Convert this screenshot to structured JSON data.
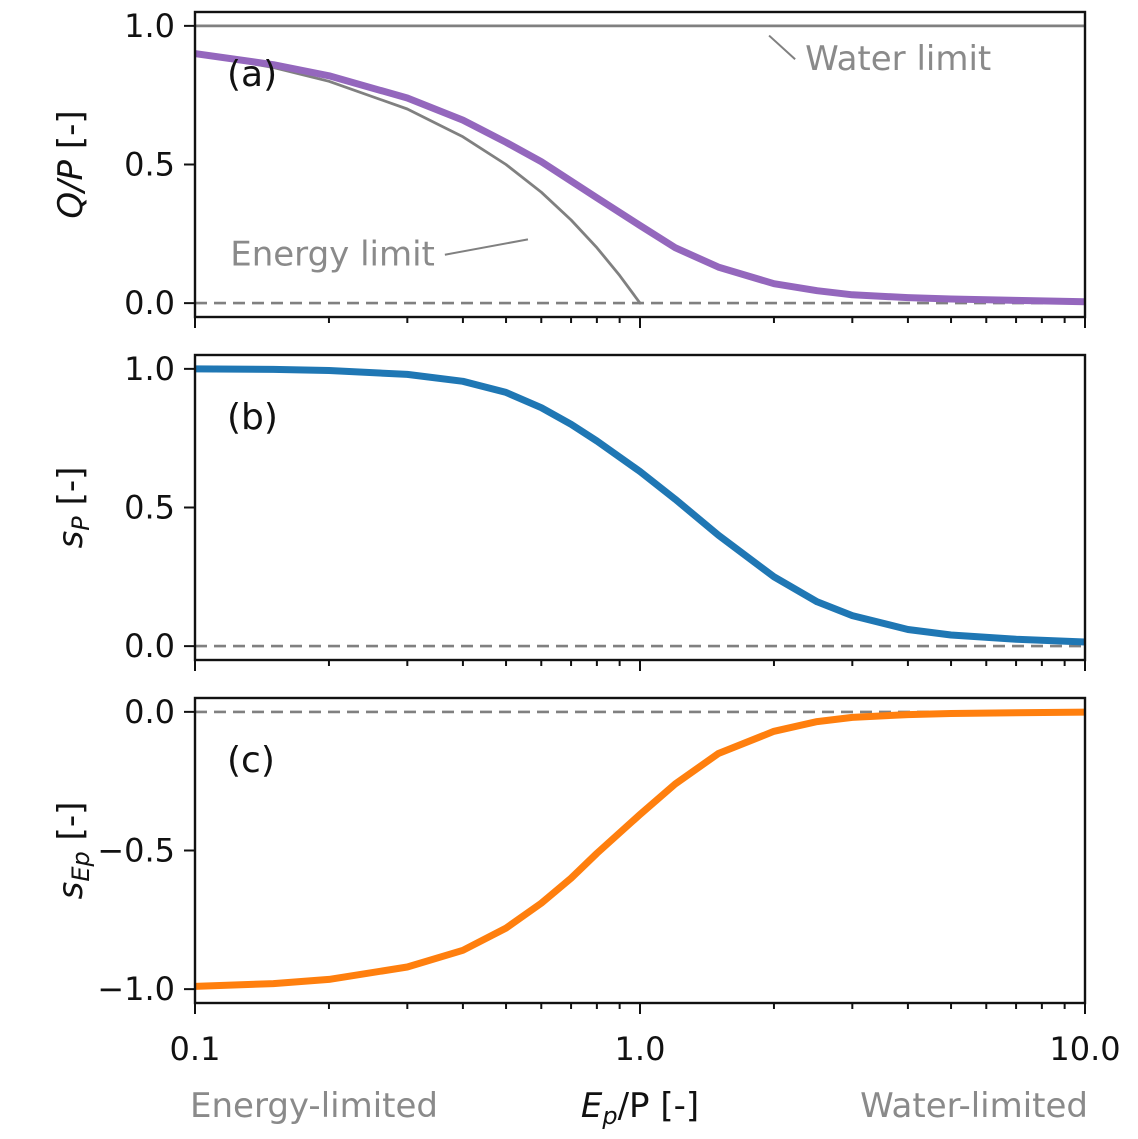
{
  "chart_data": [
    {
      "type": "line",
      "panel_label": "(a)",
      "ylabel": {
        "main": "Q/P",
        "sub": "",
        "unit": " [-]"
      },
      "xscale": "log",
      "xlim": [
        0.1,
        10.0
      ],
      "ylim": [
        -0.05,
        1.05
      ],
      "yticks": [
        0.0,
        0.5,
        1.0
      ],
      "ytick_labels": [
        "0.0",
        "0.5",
        "1.0"
      ],
      "series": [
        {
          "role": "model",
          "color": "#9467bd",
          "x": [
            0.1,
            0.15,
            0.2,
            0.3,
            0.4,
            0.5,
            0.6,
            0.7,
            0.8,
            1.0,
            1.2,
            1.5,
            2.0,
            2.5,
            3.0,
            4.0,
            5.0,
            7.0,
            10.0
          ],
          "y": [
            0.9,
            0.86,
            0.82,
            0.74,
            0.66,
            0.58,
            0.51,
            0.44,
            0.38,
            0.28,
            0.2,
            0.13,
            0.07,
            0.045,
            0.03,
            0.02,
            0.015,
            0.01,
            0.005
          ]
        },
        {
          "role": "energy-limit",
          "color": "#808080",
          "x": [
            0.1,
            0.15,
            0.2,
            0.3,
            0.4,
            0.5,
            0.6,
            0.7,
            0.8,
            0.9,
            1.0
          ],
          "y": [
            0.9,
            0.85,
            0.8,
            0.7,
            0.6,
            0.5,
            0.4,
            0.3,
            0.2,
            0.1,
            0.0
          ]
        },
        {
          "role": "water-limit",
          "color": "#808080",
          "x": [
            0.1,
            10.0
          ],
          "y": [
            1.0,
            1.0
          ]
        },
        {
          "role": "zero-line",
          "color": "#808080",
          "dashed": true,
          "x": [
            0.1,
            10.0
          ],
          "y": [
            0.0,
            0.0
          ]
        }
      ],
      "annotations": [
        {
          "text": "Water limit",
          "text_at": [
            2.35,
            0.84
          ],
          "point_to": [
            1.95,
            0.965
          ],
          "anchor": "start"
        },
        {
          "text": "Energy limit",
          "text_at": [
            0.12,
            0.135
          ],
          "point_to": [
            0.56,
            0.23
          ],
          "anchor": "start"
        }
      ]
    },
    {
      "type": "line",
      "panel_label": "(b)",
      "ylabel": {
        "main": "s",
        "sub": "P",
        "unit": " [-]"
      },
      "xscale": "log",
      "xlim": [
        0.1,
        10.0
      ],
      "ylim": [
        -0.05,
        1.05
      ],
      "yticks": [
        0.0,
        0.5,
        1.0
      ],
      "ytick_labels": [
        "0.0",
        "0.5",
        "1.0"
      ],
      "series": [
        {
          "role": "model",
          "color": "#1f77b4",
          "x": [
            0.1,
            0.15,
            0.2,
            0.3,
            0.4,
            0.5,
            0.6,
            0.7,
            0.8,
            1.0,
            1.2,
            1.5,
            2.0,
            2.5,
            3.0,
            4.0,
            5.0,
            7.0,
            10.0
          ],
          "y": [
            1.0,
            0.998,
            0.994,
            0.98,
            0.955,
            0.915,
            0.86,
            0.8,
            0.74,
            0.63,
            0.53,
            0.4,
            0.25,
            0.16,
            0.11,
            0.06,
            0.04,
            0.025,
            0.015
          ]
        },
        {
          "role": "zero-line",
          "color": "#808080",
          "dashed": true,
          "x": [
            0.1,
            10.0
          ],
          "y": [
            0.0,
            0.0
          ]
        }
      ]
    },
    {
      "type": "line",
      "panel_label": "(c)",
      "ylabel": {
        "main": "s",
        "sub": "Ep",
        "unit": " [-]"
      },
      "xscale": "log",
      "xlim": [
        0.1,
        10.0
      ],
      "xlabel": {
        "main": "E",
        "sub": "p",
        "rest": "/P [-]"
      },
      "xticks": [
        0.1,
        1.0,
        10.0
      ],
      "xtick_labels": [
        "0.1",
        "1.0",
        "10.0"
      ],
      "ylim": [
        -1.05,
        0.05
      ],
      "yticks": [
        -1.0,
        -0.5,
        0.0
      ],
      "ytick_labels": [
        "−1.0",
        "−0.5",
        "0.0"
      ],
      "series": [
        {
          "role": "model",
          "color": "#ff7f0e",
          "x": [
            0.1,
            0.15,
            0.2,
            0.3,
            0.4,
            0.5,
            0.6,
            0.7,
            0.8,
            1.0,
            1.2,
            1.5,
            2.0,
            2.5,
            3.0,
            4.0,
            5.0,
            7.0,
            10.0
          ],
          "y": [
            -0.99,
            -0.98,
            -0.965,
            -0.92,
            -0.86,
            -0.78,
            -0.69,
            -0.6,
            -0.51,
            -0.37,
            -0.26,
            -0.15,
            -0.07,
            -0.035,
            -0.02,
            -0.01,
            -0.006,
            -0.003,
            -0.001
          ]
        },
        {
          "role": "zero-line",
          "color": "#808080",
          "dashed": true,
          "x": [
            0.1,
            10.0
          ],
          "y": [
            0.0,
            0.0
          ]
        }
      ],
      "regime_labels": [
        {
          "text": "Energy-limited",
          "align": "left"
        },
        {
          "text": "Water-limited",
          "align": "right"
        }
      ]
    }
  ]
}
